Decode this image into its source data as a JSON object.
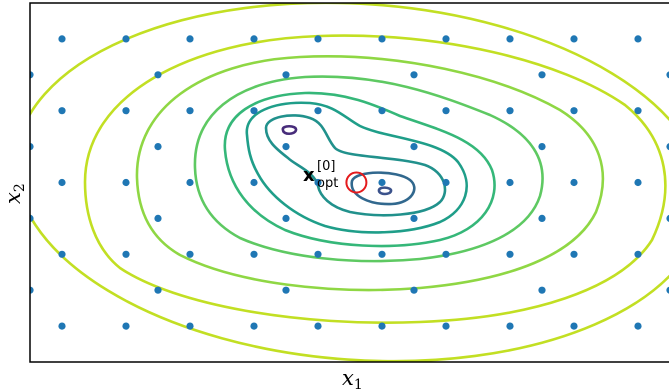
{
  "chart_data": {
    "type": "contour",
    "title": "",
    "xlabel": "x",
    "xlabel_subscript": "1",
    "ylabel": "x",
    "ylabel_subscript": "2",
    "xlim": [
      0,
      10
    ],
    "ylim": [
      0,
      10
    ],
    "grid": false,
    "ticks": false,
    "colors": {
      "points": "#1f77b4",
      "optimum_marker": "#e41a1c",
      "levels": [
        "#472c7a",
        "#3b528b",
        "#31688e",
        "#21918c",
        "#1f9e89",
        "#35b779",
        "#5ec962",
        "#8fd744",
        "#c2df23"
      ]
    },
    "grid_points": {
      "x": [
        0,
        2,
        4,
        6,
        8,
        10
      ],
      "y": [
        1,
        2,
        3,
        4,
        5,
        6,
        7,
        8,
        9
      ],
      "x_offset_rows": [
        0.5,
        1.5,
        2.5,
        3.5,
        4.5,
        5.5,
        6.5,
        7.5,
        8.5,
        9.5
      ]
    },
    "optimum": {
      "x": 5.1,
      "y": 5.0
    },
    "annotation": {
      "base": "x",
      "superscript": "[0]",
      "subscript": "opt"
    }
  }
}
